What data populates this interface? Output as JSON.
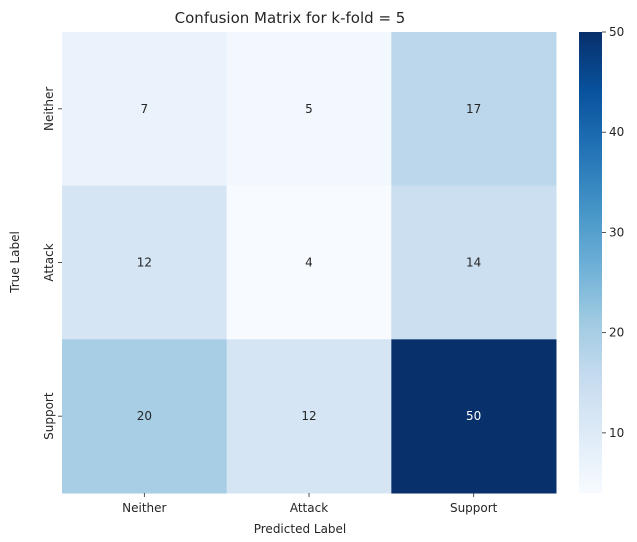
{
  "chart_data": {
    "type": "heatmap",
    "title": "Confusion Matrix for k-fold = 5",
    "xlabel": "Predicted Label",
    "ylabel": "True Label",
    "x_categories": [
      "Neither",
      "Attack",
      "Support"
    ],
    "y_categories": [
      "Neither",
      "Attack",
      "Support"
    ],
    "values": [
      [
        7,
        5,
        17
      ],
      [
        12,
        4,
        14
      ],
      [
        20,
        12,
        50
      ]
    ],
    "colormap": "Blues",
    "colorbar": {
      "min": 4,
      "max": 50,
      "ticks": [
        10,
        20,
        30,
        40,
        50
      ]
    },
    "colors": {
      "low": "#f7fbff",
      "high": "#08306b"
    }
  }
}
